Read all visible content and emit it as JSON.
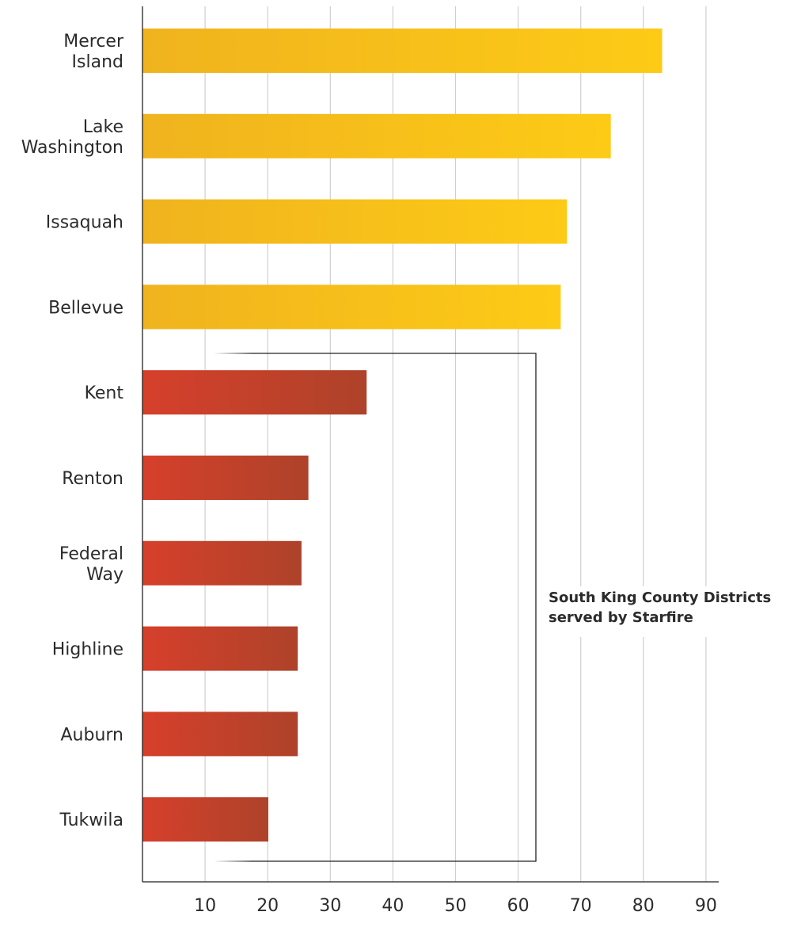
{
  "chart_data": {
    "type": "bar",
    "orientation": "horizontal",
    "categories": [
      [
        "Mercer",
        "Island"
      ],
      [
        "Lake",
        "Washington"
      ],
      [
        "Issaquah"
      ],
      [
        "Bellevue"
      ],
      [
        "Kent"
      ],
      [
        "Renton"
      ],
      [
        "Federal",
        "Way"
      ],
      [
        "Highline"
      ],
      [
        "Auburn"
      ],
      [
        "Tukwila"
      ]
    ],
    "values": [
      83,
      74.8,
      67.8,
      66.8,
      35.8,
      26.5,
      25.4,
      24.8,
      24.8,
      20.1
    ],
    "groups": [
      "high",
      "high",
      "high",
      "high",
      "south",
      "south",
      "south",
      "south",
      "south",
      "south"
    ],
    "colors": {
      "high_start": "#F0B31E",
      "high_end": "#FDCB16",
      "south_start": "#D6402B",
      "south_end": "#AE422A",
      "grid": "#cfcfcf",
      "axis": "#222222"
    },
    "xlim": [
      0,
      92
    ],
    "xticks": [
      10,
      20,
      30,
      40,
      50,
      60,
      70,
      80,
      90
    ],
    "grid": true,
    "annotation": {
      "lines": [
        "South King County Districts",
        "served by Starfire"
      ],
      "brackets_categories": [
        "Kent",
        "Renton",
        "Federal Way",
        "Highline",
        "Auburn",
        "Tukwila"
      ]
    }
  }
}
